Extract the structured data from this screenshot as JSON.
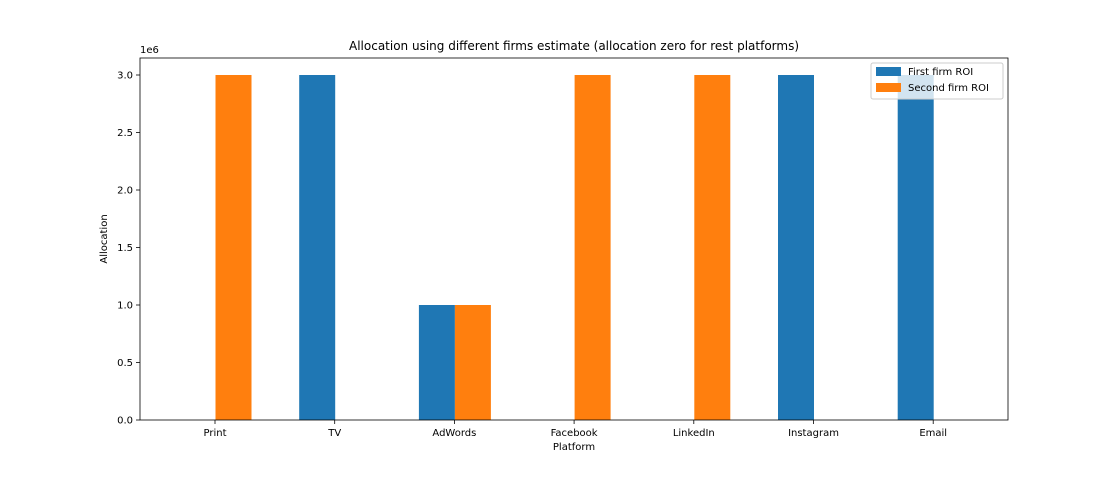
{
  "chart_data": {
    "type": "bar",
    "title": "Allocation using different firms estimate (allocation zero for rest platforms)",
    "xlabel": "Platform",
    "ylabel": "Allocation",
    "y_offset_label": "1e6",
    "categories": [
      "Print",
      "TV",
      "AdWords",
      "Facebook",
      "LinkedIn",
      "Instagram",
      "Email"
    ],
    "series": [
      {
        "name": "First firm ROI",
        "color": "#1f77b4",
        "values": [
          0,
          3000000,
          1000000,
          0,
          0,
          3000000,
          3000000
        ]
      },
      {
        "name": "Second firm ROI",
        "color": "#ff7f0e",
        "values": [
          3000000,
          0,
          1000000,
          3000000,
          3000000,
          0,
          0
        ]
      }
    ],
    "yticks": [
      {
        "value": 0,
        "label": "0.0"
      },
      {
        "value": 500000,
        "label": "0.5"
      },
      {
        "value": 1000000,
        "label": "1.0"
      },
      {
        "value": 1500000,
        "label": "1.5"
      },
      {
        "value": 2000000,
        "label": "2.0"
      },
      {
        "value": 2500000,
        "label": "2.5"
      },
      {
        "value": 3000000,
        "label": "3.0"
      }
    ],
    "ylim": [
      0,
      3000000
    ],
    "grid": false,
    "legend_position": "top-right"
  }
}
